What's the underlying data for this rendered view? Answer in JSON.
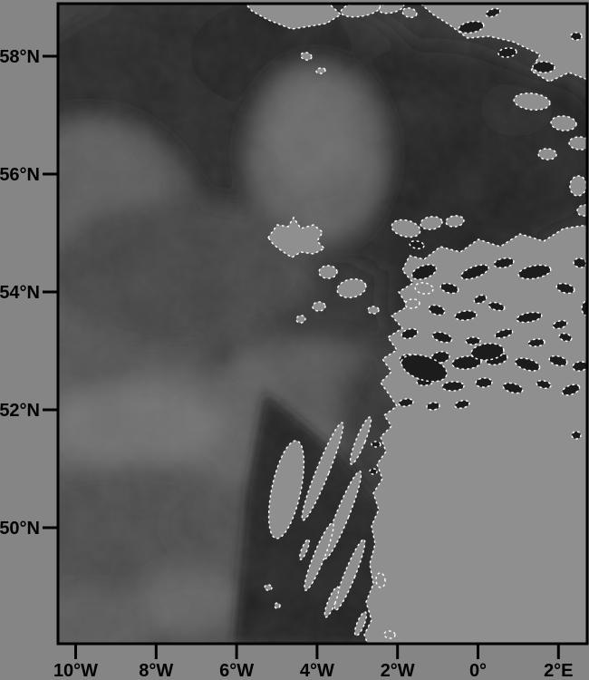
{
  "figure": {
    "type": "grayscale-satellite-map",
    "colors": {
      "margin_gray": "#858585",
      "land_mask_gray": "#8f8f8f",
      "coastline_fleck_white": "#fbfbfb",
      "axis_black": "#000000",
      "cloud_dark": "#151515"
    },
    "axes": {
      "latitude_ticks": [
        {
          "label": "58°N",
          "deg": 58
        },
        {
          "label": "56°N",
          "deg": 56
        },
        {
          "label": "54°N",
          "deg": 54
        },
        {
          "label": "52°N",
          "deg": 52
        },
        {
          "label": "50°N",
          "deg": 50
        }
      ],
      "longitude_ticks": [
        {
          "label": "10°W",
          "deg": -10
        },
        {
          "label": "8°W",
          "deg": -8
        },
        {
          "label": "6°W",
          "deg": -6
        },
        {
          "label": "4°W",
          "deg": -4
        },
        {
          "label": "2°W",
          "deg": -2
        },
        {
          "label": "0°",
          "deg": 0
        },
        {
          "label": "2°E",
          "deg": 2
        }
      ]
    }
  }
}
